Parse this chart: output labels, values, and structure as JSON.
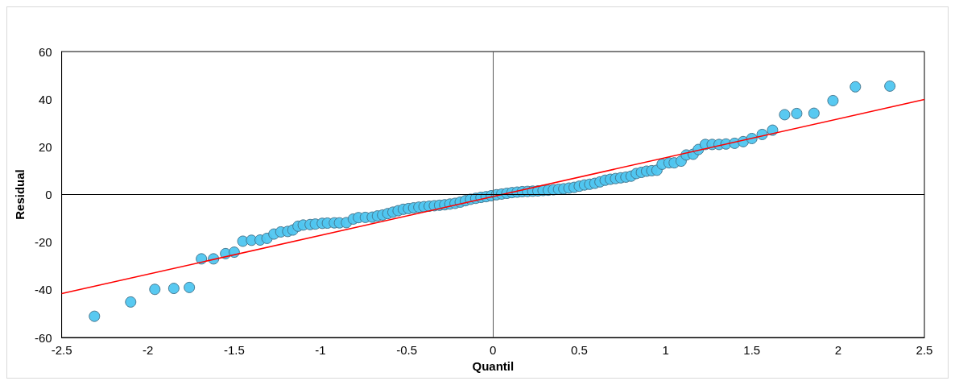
{
  "chart_data": {
    "type": "scatter",
    "xlabel": "Quantil",
    "ylabel": "Residual",
    "xlim": [
      -2.5,
      2.5
    ],
    "xticks": [
      -2.5,
      -2,
      -1.5,
      -1,
      -0.5,
      0,
      0.5,
      1,
      1.5,
      2,
      2.5
    ],
    "ylim": [
      -60,
      60
    ],
    "yticks": [
      -60,
      -40,
      -20,
      0,
      20,
      40,
      60
    ],
    "grid": false,
    "ref_lines": [
      {
        "axis": "x",
        "value": 0,
        "color": "#595959"
      },
      {
        "axis": "y",
        "value": 0,
        "color": "#000000"
      }
    ],
    "series": [
      {
        "marker": "circle",
        "color": "#4fc6f0",
        "x": [
          -2.31,
          -2.1,
          -1.96,
          -1.85,
          -1.76,
          -1.69,
          -1.62,
          -1.55,
          -1.5,
          -1.45,
          -1.4,
          -1.35,
          -1.31,
          -1.27,
          -1.23,
          -1.19,
          -1.16,
          -1.13,
          -1.1,
          -1.06,
          -1.03,
          -0.99,
          -0.96,
          -0.92,
          -0.89,
          -0.85,
          -0.81,
          -0.78,
          -0.74,
          -0.7,
          -0.67,
          -0.64,
          -0.61,
          -0.58,
          -0.55,
          -0.52,
          -0.49,
          -0.46,
          -0.43,
          -0.4,
          -0.37,
          -0.34,
          -0.31,
          -0.28,
          -0.25,
          -0.22,
          -0.19,
          -0.16,
          -0.13,
          -0.1,
          -0.07,
          -0.04,
          -0.01,
          0.02,
          0.05,
          0.08,
          0.11,
          0.14,
          0.17,
          0.2,
          0.23,
          0.26,
          0.29,
          0.32,
          0.35,
          0.38,
          0.41,
          0.44,
          0.47,
          0.5,
          0.53,
          0.56,
          0.59,
          0.62,
          0.65,
          0.68,
          0.71,
          0.74,
          0.77,
          0.8,
          0.83,
          0.86,
          0.89,
          0.92,
          0.95,
          0.98,
          1.02,
          1.05,
          1.09,
          1.12,
          1.16,
          1.19,
          1.23,
          1.27,
          1.31,
          1.35,
          1.4,
          1.45,
          1.5,
          1.56,
          1.62,
          1.69,
          1.76,
          1.86,
          1.97,
          2.1,
          2.3
        ],
        "values": [
          -51.1,
          -45.1,
          -39.8,
          -39.4,
          -39.0,
          -27.0,
          -27.0,
          -24.8,
          -24.2,
          -19.6,
          -19.2,
          -19.1,
          -18.4,
          -16.6,
          -15.7,
          -15.5,
          -14.9,
          -13.3,
          -12.8,
          -12.6,
          -12.4,
          -12.1,
          -12.0,
          -11.9,
          -11.9,
          -11.8,
          -10.3,
          -9.7,
          -9.6,
          -9.5,
          -9.0,
          -8.6,
          -8.0,
          -7.4,
          -6.8,
          -6.2,
          -5.9,
          -5.6,
          -5.3,
          -5.1,
          -4.9,
          -4.7,
          -4.5,
          -4.3,
          -4.0,
          -3.7,
          -3.2,
          -2.6,
          -2.0,
          -1.6,
          -1.2,
          -0.9,
          -0.5,
          -0.1,
          0.2,
          0.5,
          0.8,
          1.0,
          1.2,
          1.3,
          1.4,
          1.5,
          1.7,
          1.8,
          2.0,
          2.2,
          2.4,
          2.7,
          3.0,
          3.5,
          4.0,
          4.3,
          4.7,
          5.3,
          6.0,
          6.4,
          6.7,
          7.0,
          7.3,
          7.7,
          8.8,
          9.3,
          9.8,
          10.0,
          10.2,
          12.7,
          13.3,
          13.3,
          14.0,
          16.6,
          16.9,
          18.9,
          21.0,
          21.0,
          21.0,
          21.2,
          21.5,
          22.2,
          23.5,
          25.2,
          27.0,
          33.5,
          34.0,
          34.1,
          39.4,
          45.2,
          45.5
        ]
      },
      {
        "type": "line",
        "marker": "none",
        "color": "#ff0000",
        "line_style": "solid",
        "x": [
          -2.5,
          2.5
        ],
        "values": [
          -41.6,
          39.9
        ]
      }
    ]
  }
}
